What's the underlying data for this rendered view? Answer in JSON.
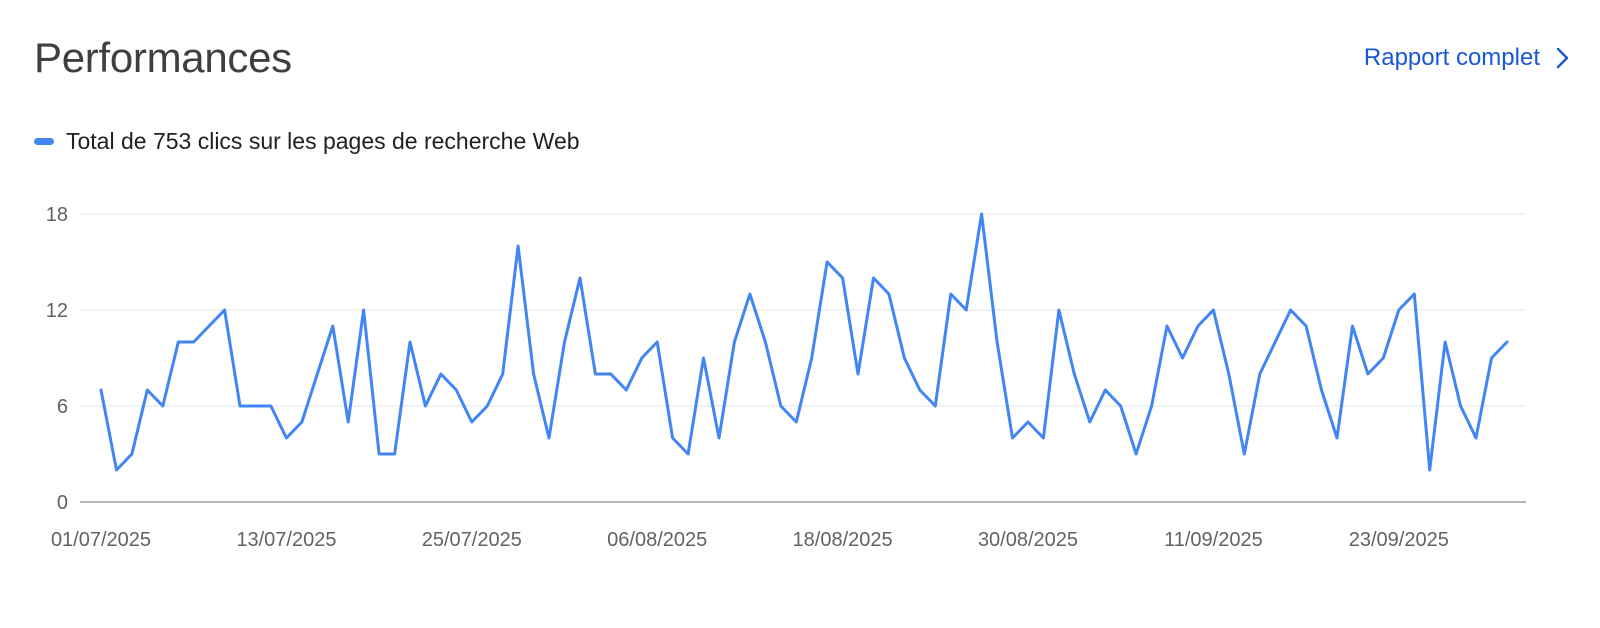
{
  "header": {
    "title": "Performances",
    "report_link_label": "Rapport complet"
  },
  "colors": {
    "series": "#4285f4",
    "grid": "#e8eaed",
    "axis": "#9aa0a6",
    "link": "#1a57d6"
  },
  "icons": {
    "report_link": "chevron-right-icon",
    "legend": "legend-line-swatch"
  },
  "chart_data": {
    "type": "line",
    "title": "",
    "xlabel": "",
    "ylabel": "",
    "ylim": [
      0,
      18
    ],
    "yticks": [
      0,
      6,
      12,
      18
    ],
    "grid": true,
    "legend_position": "top-left",
    "x_tick_labels": [
      "01/07/2025",
      "13/07/2025",
      "25/07/2025",
      "06/08/2025",
      "18/08/2025",
      "30/08/2025",
      "11/09/2025",
      "23/09/2025"
    ],
    "x_start": "01/07/2025",
    "x_end": "28/09/2025",
    "series": [
      {
        "name": "Total de 753 clics sur les pages de recherche Web",
        "values": [
          7,
          2,
          3,
          7,
          6,
          10,
          10,
          11,
          12,
          6,
          6,
          6,
          4,
          5,
          8,
          11,
          5,
          12,
          3,
          3,
          10,
          6,
          8,
          7,
          5,
          6,
          8,
          16,
          8,
          4,
          10,
          14,
          8,
          8,
          7,
          9,
          10,
          4,
          3,
          9,
          4,
          10,
          13,
          10,
          6,
          5,
          9,
          15,
          14,
          8,
          14,
          13,
          9,
          7,
          6,
          13,
          12,
          18,
          10,
          4,
          5,
          4,
          12,
          8,
          5,
          7,
          6,
          3,
          6,
          11,
          9,
          11,
          12,
          8,
          3,
          8,
          10,
          12,
          11,
          7,
          4,
          11,
          8,
          9,
          12,
          13,
          2,
          10,
          6,
          4,
          9,
          10
        ]
      }
    ]
  }
}
